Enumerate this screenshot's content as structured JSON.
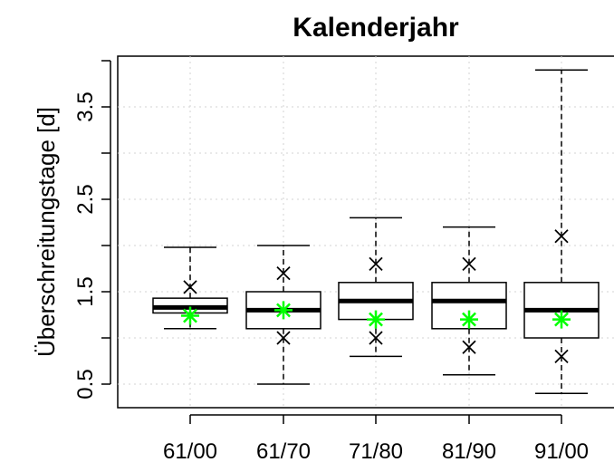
{
  "chart_data": {
    "type": "boxplot",
    "title": "Kalenderjahr",
    "xlabel": "",
    "ylabel": "Überschreitungstage [d]",
    "ylim": [
      0.3,
      4.05
    ],
    "yticks": [
      0.5,
      1.5,
      2.5,
      3.5
    ],
    "grid": true,
    "categories": [
      "61/00",
      "61/70",
      "71/80",
      "81/90",
      "91/00"
    ],
    "boxes": [
      {
        "whisker_low": 1.1,
        "q1": 1.27,
        "median": 1.33,
        "q3": 1.43,
        "whisker_high": 1.98,
        "cross_high": 1.55,
        "cross_low": null,
        "mean": 1.24
      },
      {
        "whisker_low": 0.5,
        "q1": 1.1,
        "median": 1.3,
        "q3": 1.5,
        "whisker_high": 2.0,
        "cross_high": 1.7,
        "cross_low": 1.0,
        "mean": 1.3
      },
      {
        "whisker_low": 0.8,
        "q1": 1.2,
        "median": 1.4,
        "q3": 1.6,
        "whisker_high": 2.3,
        "cross_high": 1.8,
        "cross_low": 1.0,
        "mean": 1.2
      },
      {
        "whisker_low": 0.6,
        "q1": 1.1,
        "median": 1.4,
        "q3": 1.6,
        "whisker_high": 2.2,
        "cross_high": 1.8,
        "cross_low": 0.9,
        "mean": 1.2
      },
      {
        "whisker_low": 0.4,
        "q1": 1.0,
        "median": 1.3,
        "q3": 1.6,
        "whisker_high": 3.9,
        "cross_high": 2.1,
        "cross_low": 0.8,
        "mean": 1.2
      }
    ],
    "colors": {
      "mean_marker": "#00ff00",
      "box": "#000000",
      "grid": "#d3d3d3"
    }
  }
}
